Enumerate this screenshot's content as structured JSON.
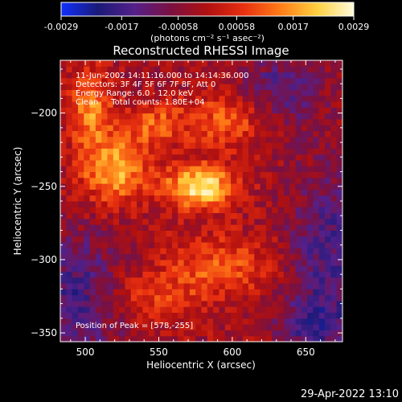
{
  "chart_data": {
    "type": "heatmap",
    "title": "Reconstructed RHESSI Image",
    "xlabel": "Heliocentric X (arcsec)",
    "ylabel": "Heliocentric Y (arcsec)",
    "xlim": [
      483,
      675
    ],
    "ylim": [
      -356,
      -164
    ],
    "xticks": [
      500,
      550,
      600,
      650
    ],
    "yticks": [
      -200,
      -250,
      -300,
      -350
    ],
    "colorbar": {
      "range": [
        -0.0029,
        0.0029
      ],
      "ticks": [
        "-0.0029",
        "-0.0017",
        "-0.00058",
        "0.00058",
        "0.0017",
        "0.0029"
      ],
      "units_label": "(photons cm⁻² s⁻¹ asec⁻²)",
      "colormap": [
        "#1030ff",
        "#1a1a78",
        "#55208a",
        "#7a1040",
        "#b01010",
        "#e83010",
        "#ff7d18",
        "#ffd040",
        "#fffadc"
      ]
    },
    "annotations": [
      "11-Jun-2002 14:11:16.000 to 14:14:36.000",
      "Detectors: 3F 4F 5F 6F 7F 8F, Att 0",
      "Energy Range: 6.0 - 12.0 keV",
      "Clean     Total counts: 1.80E+04"
    ],
    "peak_label": "Position of Peak = [578,-255]",
    "peak": [
      578,
      -255
    ],
    "sources": [
      {
        "x": 578,
        "y": -250,
        "peak": 0.0029,
        "sx": 16,
        "sy": 10
      },
      {
        "x": 520,
        "y": -238,
        "peak": 0.0022,
        "sx": 16,
        "sy": 16
      },
      {
        "x": 503,
        "y": -196,
        "peak": 0.0018,
        "sx": 10,
        "sy": 18
      },
      {
        "x": 598,
        "y": -203,
        "peak": 0.0014,
        "sx": 20,
        "sy": 14
      },
      {
        "x": 548,
        "y": -208,
        "peak": 0.0013,
        "sx": 14,
        "sy": 10
      },
      {
        "x": 590,
        "y": -305,
        "peak": 0.0012,
        "sx": 26,
        "sy": 16
      },
      {
        "x": 540,
        "y": -325,
        "peak": 0.0009,
        "sx": 22,
        "sy": 12
      }
    ],
    "negative_regions": [
      {
        "x": 495,
        "y": -325,
        "peak": -0.0015,
        "sx": 22,
        "sy": 30
      },
      {
        "x": 665,
        "y": -295,
        "peak": -0.0014,
        "sx": 18,
        "sy": 40
      },
      {
        "x": 632,
        "y": -185,
        "peak": -0.0012,
        "sx": 22,
        "sy": 18
      },
      {
        "x": 655,
        "y": -345,
        "peak": -0.0011,
        "sx": 20,
        "sy": 14
      }
    ]
  },
  "timestamp": "29-Apr-2022 13:10"
}
